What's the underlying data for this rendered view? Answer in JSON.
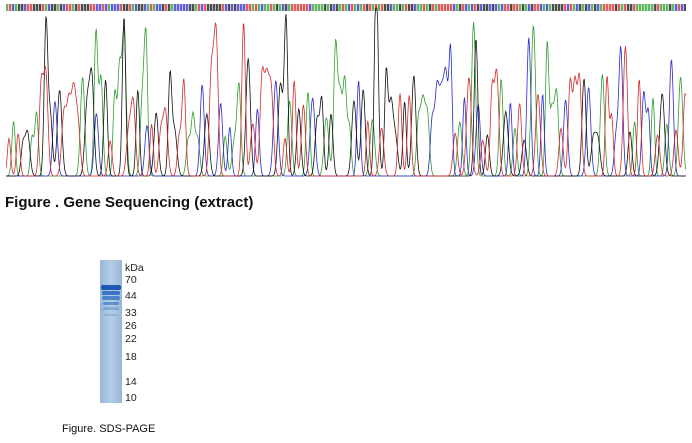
{
  "sequencing": {
    "caption": "Figure . Gene Sequencing (extract)",
    "channel_colors": {
      "A": "#2f9e2f",
      "C": "#2a2ad0",
      "G": "#111111",
      "T": "#d42a2a"
    }
  },
  "sds_page": {
    "caption": "Figure. SDS-PAGE",
    "unit": "kDa",
    "markers": [
      "70",
      "44",
      "33",
      "26",
      "22",
      "18",
      "14",
      "10"
    ],
    "gel_color": "#a7c3de",
    "band_color": "#1d57b8"
  }
}
